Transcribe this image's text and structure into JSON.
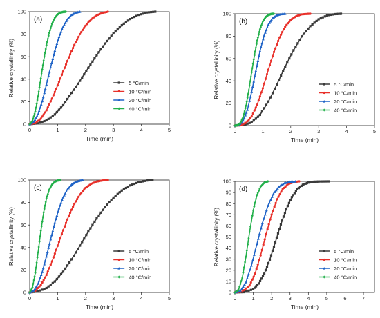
{
  "colors": {
    "5": "#3a3a3a",
    "10": "#e8302a",
    "20": "#1f63c7",
    "40": "#22b04a"
  },
  "chart_data": [
    {
      "type": "line",
      "panel_label": "(a)",
      "xlabel": "Time (min)",
      "ylabel": "Relative crystallinity (%)",
      "xlim": [
        0,
        5
      ],
      "ylim": [
        0,
        100
      ],
      "xticks": [
        "0",
        "1",
        "2",
        "3",
        "4",
        "5"
      ],
      "yticks": [
        "0",
        "20",
        "40",
        "60",
        "80",
        "100"
      ],
      "grid": false,
      "legend_position": "lower-right",
      "series": [
        {
          "name": "5 °C/min",
          "color_key": "5",
          "marker": "square",
          "x": [
            0,
            0.3,
            0.6,
            0.9,
            1.2,
            1.5,
            1.8,
            2.1,
            2.4,
            2.7,
            3.0,
            3.3,
            3.6,
            3.9,
            4.2,
            4.5
          ],
          "y": [
            0,
            0.8,
            3.4,
            8.7,
            16.9,
            27.9,
            38.6,
            50.1,
            61.4,
            71.7,
            80.7,
            88.0,
            93.5,
            97.2,
            99.3,
            100
          ]
        },
        {
          "name": "10 °C/min",
          "color_key": "10",
          "marker": "circle",
          "x": [
            0,
            0.2,
            0.4,
            0.6,
            0.8,
            1.0,
            1.2,
            1.4,
            1.6,
            1.8,
            2.0,
            2.2,
            2.4,
            2.6,
            2.8
          ],
          "y": [
            0,
            1.0,
            5.0,
            12.3,
            22.9,
            34.5,
            47.0,
            59.3,
            70.5,
            80.1,
            87.6,
            93.2,
            96.8,
            98.9,
            100
          ]
        },
        {
          "name": "20 °C/min",
          "color_key": "20",
          "marker": "triangle",
          "x": [
            0,
            0.15,
            0.3,
            0.45,
            0.6,
            0.75,
            0.9,
            1.05,
            1.2,
            1.35,
            1.5,
            1.65,
            1.8
          ],
          "y": [
            0,
            2.3,
            9.0,
            20.5,
            35.3,
            50.7,
            65.4,
            77.6,
            86.9,
            93.3,
            97.2,
            99.2,
            100
          ]
        },
        {
          "name": "40 °C/min",
          "color_key": "40",
          "marker": "diamond",
          "x": [
            0,
            0.1,
            0.2,
            0.3,
            0.4,
            0.5,
            0.6,
            0.7,
            0.8,
            0.9,
            1.0,
            1.1,
            1.2,
            1.3
          ],
          "y": [
            0,
            2.9,
            11.3,
            24.9,
            40.8,
            56.5,
            70.3,
            81.4,
            89.3,
            94.6,
            97.6,
            99.2,
            99.8,
            100
          ]
        }
      ]
    },
    {
      "type": "line",
      "panel_label": "(b)",
      "xlabel": "Time (min)",
      "ylabel": "Relative crystallinity (%)",
      "xlim": [
        0,
        5
      ],
      "ylim": [
        0,
        100
      ],
      "xticks": [
        "0",
        "1",
        "2",
        "3",
        "4",
        "5"
      ],
      "yticks": [
        "0",
        "20",
        "40",
        "60",
        "80",
        "100"
      ],
      "grid": false,
      "legend_position": "lower-right",
      "series": [
        {
          "name": "5 °C/min",
          "color_key": "5",
          "marker": "square",
          "x": [
            0,
            0.3,
            0.6,
            0.9,
            1.2,
            1.5,
            1.8,
            2.1,
            2.4,
            2.7,
            3.0,
            3.3,
            3.6,
            3.8
          ],
          "y": [
            0,
            0.5,
            2.9,
            9.6,
            21.5,
            36.6,
            52.7,
            67.4,
            79.8,
            89.0,
            95.1,
            98.5,
            99.7,
            100
          ]
        },
        {
          "name": "10 °C/min",
          "color_key": "10",
          "marker": "circle",
          "x": [
            0,
            0.2,
            0.4,
            0.6,
            0.8,
            1.0,
            1.2,
            1.4,
            1.6,
            1.8,
            2.0,
            2.2,
            2.4,
            2.6,
            2.7
          ],
          "y": [
            0,
            0.3,
            2.5,
            8.2,
            18.8,
            33.4,
            50.1,
            65.8,
            78.9,
            88.5,
            94.6,
            97.9,
            99.5,
            99.9,
            100
          ]
        },
        {
          "name": "20 °C/min",
          "color_key": "20",
          "marker": "triangle",
          "x": [
            0,
            0.15,
            0.3,
            0.45,
            0.6,
            0.75,
            0.9,
            1.05,
            1.2,
            1.35,
            1.5,
            1.65,
            1.8
          ],
          "y": [
            0,
            0.6,
            4.5,
            14.2,
            30.1,
            48.9,
            66.7,
            80.8,
            90.5,
            96.0,
            98.7,
            99.7,
            100
          ]
        },
        {
          "name": "40 °C/min",
          "color_key": "40",
          "marker": "diamond",
          "x": [
            0,
            0.1,
            0.2,
            0.3,
            0.4,
            0.5,
            0.6,
            0.7,
            0.8,
            0.9,
            1.0,
            1.1,
            1.2,
            1.3,
            1.4
          ],
          "y": [
            0,
            0.3,
            2.4,
            7.9,
            17.9,
            31.8,
            47.6,
            63.0,
            76.2,
            86.3,
            93.1,
            97.0,
            99.0,
            99.8,
            100
          ]
        }
      ]
    },
    {
      "type": "line",
      "panel_label": "(c)",
      "xlabel": "Time (min)",
      "ylabel": "Relative crystallinity (%)",
      "xlim": [
        0,
        5
      ],
      "ylim": [
        0,
        100
      ],
      "xticks": [
        "0",
        "1",
        "2",
        "3",
        "4",
        "5"
      ],
      "yticks": [
        "0",
        "20",
        "40",
        "60",
        "80",
        "100"
      ],
      "grid": false,
      "legend_position": "lower-right",
      "series": [
        {
          "name": "5 °C/min",
          "color_key": "5",
          "marker": "square",
          "x": [
            0,
            0.3,
            0.6,
            0.9,
            1.2,
            1.5,
            1.8,
            2.1,
            2.4,
            2.7,
            3.0,
            3.3,
            3.6,
            3.9,
            4.2,
            4.4
          ],
          "y": [
            0,
            1.0,
            4.0,
            9.8,
            18.5,
            29.5,
            41.7,
            54.2,
            65.9,
            76.0,
            84.4,
            90.7,
            95.2,
            98.0,
            99.6,
            100
          ]
        },
        {
          "name": "10 °C/min",
          "color_key": "10",
          "marker": "circle",
          "x": [
            0,
            0.2,
            0.4,
            0.6,
            0.8,
            1.0,
            1.2,
            1.4,
            1.6,
            1.8,
            2.0,
            2.2,
            2.4,
            2.6,
            2.8
          ],
          "y": [
            0,
            1.5,
            6.7,
            15.6,
            27.7,
            41.5,
            55.4,
            68.2,
            78.9,
            87.2,
            93.0,
            96.6,
            98.6,
            99.6,
            100
          ]
        },
        {
          "name": "20 °C/min",
          "color_key": "20",
          "marker": "triangle",
          "x": [
            0,
            0.15,
            0.3,
            0.45,
            0.6,
            0.75,
            0.9,
            1.05,
            1.2,
            1.35,
            1.5,
            1.65,
            1.8,
            1.9
          ],
          "y": [
            0,
            1.8,
            7.9,
            18.3,
            32.1,
            47.4,
            62.1,
            74.9,
            84.8,
            91.7,
            96.0,
            98.4,
            99.5,
            100
          ]
        },
        {
          "name": "40 °C/min",
          "color_key": "40",
          "marker": "diamond",
          "x": [
            0,
            0.1,
            0.2,
            0.3,
            0.4,
            0.5,
            0.6,
            0.7,
            0.8,
            0.9,
            1.0,
            1.1
          ],
          "y": [
            0,
            4.5,
            17.4,
            35.7,
            54.8,
            71.2,
            83.5,
            91.5,
            96.1,
            98.5,
            99.6,
            100
          ]
        }
      ]
    },
    {
      "type": "line",
      "panel_label": "(d)",
      "xlabel": "Time (min)",
      "ylabel": "Relative crystallinity (%)",
      "xlim": [
        0,
        7.6
      ],
      "ylim": [
        0,
        100
      ],
      "xticks": [
        "0",
        "1",
        "2",
        "3",
        "4",
        "5",
        "6",
        "7"
      ],
      "yticks": [
        "0",
        "10",
        "20",
        "30",
        "40",
        "50",
        "60",
        "70",
        "80",
        "90",
        "100"
      ],
      "grid": false,
      "legend_position": "lower-right",
      "series": [
        {
          "name": "5 °C/min",
          "color_key": "5",
          "marker": "square",
          "x": [
            0,
            0.5,
            1.0,
            1.3,
            1.6,
            1.9,
            2.2,
            2.5,
            2.8,
            3.1,
            3.4,
            3.7,
            4.0,
            4.3,
            4.6,
            5.1
          ],
          "y": [
            0,
            0.3,
            3.0,
            8.1,
            16.9,
            29.6,
            45.2,
            61.3,
            75.2,
            85.9,
            93.0,
            97.0,
            98.9,
            99.7,
            99.9,
            100
          ]
        },
        {
          "name": "10 °C/min",
          "color_key": "10",
          "marker": "circle",
          "x": [
            0,
            0.4,
            0.8,
            1.1,
            1.4,
            1.7,
            2.0,
            2.3,
            2.6,
            2.9,
            3.2,
            3.5
          ],
          "y": [
            0,
            0.8,
            6.3,
            17.0,
            33.5,
            52.6,
            70.2,
            84.0,
            93.0,
            97.6,
            99.4,
            100
          ]
        },
        {
          "name": "20 °C/min",
          "color_key": "20",
          "marker": "triangle",
          "x": [
            0,
            0.3,
            0.6,
            0.9,
            1.2,
            1.5,
            1.8,
            2.1,
            2.4,
            2.7,
            3.0,
            3.3
          ],
          "y": [
            0,
            1.5,
            9.2,
            24.3,
            43.7,
            62.6,
            78.1,
            88.9,
            95.3,
            98.4,
            99.6,
            100
          ]
        },
        {
          "name": "40 °C/min",
          "color_key": "40",
          "marker": "diamond",
          "x": [
            0,
            0.2,
            0.4,
            0.6,
            0.8,
            1.0,
            1.2,
            1.4,
            1.6,
            1.8
          ],
          "y": [
            0,
            2.4,
            13.0,
            32.1,
            54.5,
            74.0,
            87.7,
            95.3,
            98.8,
            100
          ]
        }
      ]
    }
  ]
}
